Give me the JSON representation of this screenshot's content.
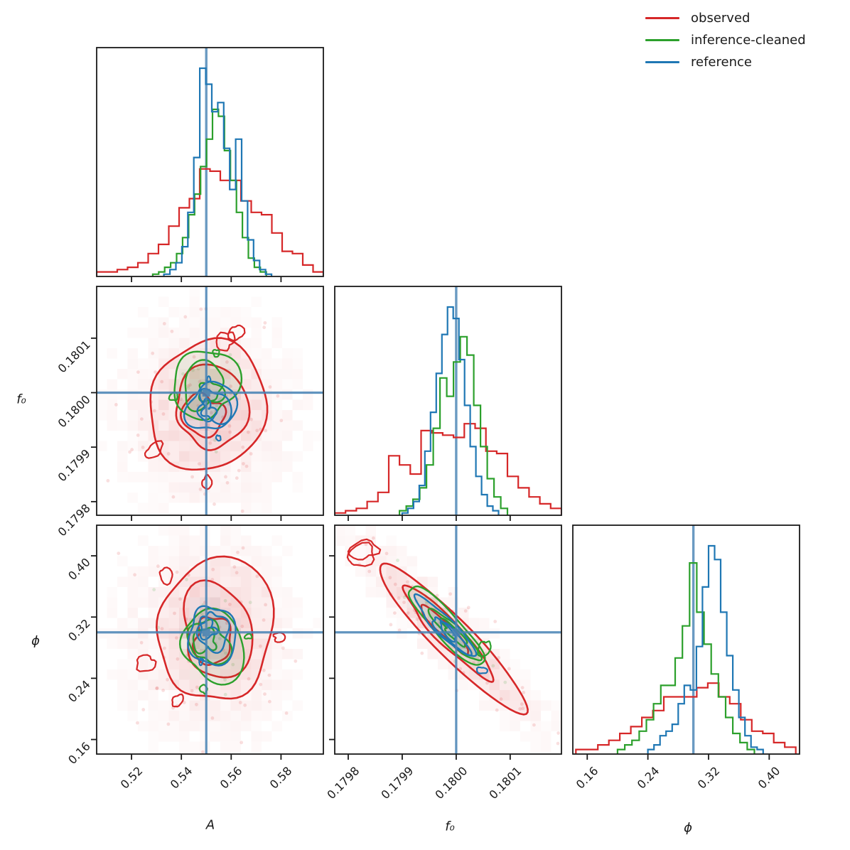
{
  "chart_data": {
    "type": "corner",
    "description": "Corner plot of posterior samples for parameters A, f0, phi comparing three sample sets",
    "legend_position": "upper right",
    "truth_color": "#4682b4",
    "series": [
      {
        "name": "observed",
        "color": "#d62728"
      },
      {
        "name": "inference-cleaned",
        "color": "#2ca02c"
      },
      {
        "name": "reference",
        "color": "#1f77b4"
      }
    ],
    "parameters": [
      {
        "key": "A",
        "label": "A",
        "range": [
          0.506,
          0.597
        ],
        "ticks": [
          0.52,
          0.54,
          0.56,
          0.58
        ],
        "tick_labels": [
          "0.52",
          "0.54",
          "0.56",
          "0.58"
        ],
        "truth": 0.55
      },
      {
        "key": "f0",
        "label": "f₀",
        "range": [
          0.179775,
          0.180195
        ],
        "ticks": [
          0.1798,
          0.1799,
          0.18,
          0.1801
        ],
        "tick_labels": [
          "0.1798",
          "0.1799",
          "0.1800",
          "0.1801"
        ],
        "truth": 0.18
      },
      {
        "key": "phi",
        "label": "ϕ",
        "range": [
          0.141,
          0.44
        ],
        "ticks": [
          0.16,
          0.24,
          0.32,
          0.4
        ],
        "tick_labels": [
          "0.16",
          "0.24",
          "0.32",
          "0.40"
        ],
        "truth": 0.3
      }
    ],
    "histograms": {
      "A": [
        {
          "start": 0.506,
          "binw": 0.004136,
          "heights": [
            0.02,
            0.02,
            0.03,
            0.04,
            0.06,
            0.1,
            0.14,
            0.22,
            0.3,
            0.34,
            0.47,
            0.46,
            0.42,
            0.42,
            0.33,
            0.28,
            0.27,
            0.19,
            0.11,
            0.1,
            0.05,
            0.02
          ]
        },
        {
          "start": 0.5285,
          "binw": 0.0024,
          "heights": [
            0.01,
            0.02,
            0.04,
            0.06,
            0.1,
            0.17,
            0.27,
            0.36,
            0.48,
            0.6,
            0.73,
            0.7,
            0.55,
            0.42,
            0.28,
            0.17,
            0.08,
            0.04,
            0.02
          ]
        },
        {
          "start": 0.533,
          "binw": 0.0024,
          "heights": [
            0.01,
            0.03,
            0.06,
            0.13,
            0.28,
            0.52,
            0.91,
            0.84,
            0.72,
            0.76,
            0.56,
            0.38,
            0.6,
            0.33,
            0.16,
            0.07,
            0.03,
            0.01
          ]
        }
      ],
      "f0": [
        {
          "start": 0.179775,
          "binw": 2e-05,
          "heights": [
            0.01,
            0.02,
            0.03,
            0.06,
            0.1,
            0.26,
            0.22,
            0.18,
            0.37,
            0.36,
            0.35,
            0.34,
            0.4,
            0.38,
            0.28,
            0.27,
            0.17,
            0.12,
            0.08,
            0.05,
            0.03
          ]
        },
        {
          "start": 0.179895,
          "binw": 1.25e-05,
          "heights": [
            0.02,
            0.04,
            0.07,
            0.12,
            0.22,
            0.38,
            0.6,
            0.52,
            0.67,
            0.78,
            0.7,
            0.48,
            0.3,
            0.16,
            0.08,
            0.03
          ]
        },
        {
          "start": 0.1799,
          "binw": 1.05e-05,
          "heights": [
            0.01,
            0.03,
            0.06,
            0.13,
            0.28,
            0.45,
            0.62,
            0.79,
            0.91,
            0.86,
            0.68,
            0.48,
            0.3,
            0.17,
            0.09,
            0.04,
            0.02
          ]
        }
      ],
      "phi": [
        {
          "start": 0.145,
          "binw": 0.0145,
          "heights": [
            0.02,
            0.02,
            0.04,
            0.06,
            0.09,
            0.12,
            0.16,
            0.19,
            0.25,
            0.25,
            0.25,
            0.29,
            0.31,
            0.25,
            0.22,
            0.15,
            0.1,
            0.09,
            0.05,
            0.03
          ]
        },
        {
          "start": 0.2,
          "binw": 0.0095,
          "heights": [
            0.02,
            0.04,
            0.06,
            0.1,
            0.15,
            0.22,
            0.3,
            0.3,
            0.42,
            0.56,
            0.835,
            0.62,
            0.48,
            0.35,
            0.25,
            0.16,
            0.09,
            0.05,
            0.02
          ]
        },
        {
          "start": 0.24,
          "binw": 0.008,
          "heights": [
            0.02,
            0.04,
            0.08,
            0.1,
            0.13,
            0.22,
            0.3,
            0.28,
            0.47,
            0.73,
            0.91,
            0.85,
            0.62,
            0.43,
            0.28,
            0.16,
            0.08,
            0.03,
            0.02
          ]
        }
      ]
    },
    "contours": {
      "A_f0": [
        {
          "cx": 0.49,
          "cy": 0.55,
          "rx": 0.26,
          "ry": 0.28,
          "angle": 0,
          "jag": 0.14,
          "islands": 4
        },
        {
          "cx": 0.49,
          "cy": 0.45,
          "rx": 0.14,
          "ry": 0.15,
          "angle": 0,
          "jag": 0.22,
          "islands": 2
        },
        {
          "cx": 0.5,
          "cy": 0.53,
          "rx": 0.1,
          "ry": 0.11,
          "angle": 0,
          "jag": 0.28,
          "islands": 2
        }
      ],
      "A_phi": [
        {
          "cx": 0.5,
          "cy": 0.5,
          "rx": 0.26,
          "ry": 0.3,
          "angle": 0,
          "jag": 0.16,
          "islands": 4
        },
        {
          "cx": 0.49,
          "cy": 0.52,
          "rx": 0.13,
          "ry": 0.16,
          "angle": 0,
          "jag": 0.24,
          "islands": 2
        },
        {
          "cx": 0.5,
          "cy": 0.45,
          "rx": 0.1,
          "ry": 0.13,
          "angle": 0,
          "jag": 0.28,
          "islands": 1
        }
      ],
      "f0_phi": [
        {
          "cx": 0.5,
          "cy": 0.47,
          "rx": 0.44,
          "ry": 0.085,
          "angle": 45,
          "jag": 0.1,
          "islands": 2
        },
        {
          "cx": 0.51,
          "cy": 0.46,
          "rx": 0.24,
          "ry": 0.055,
          "angle": 45,
          "jag": 0.16,
          "islands": 1
        },
        {
          "cx": 0.5,
          "cy": 0.46,
          "rx": 0.17,
          "ry": 0.042,
          "angle": 45,
          "jag": 0.2,
          "islands": 1
        }
      ]
    },
    "contour_levels": [
      1.0,
      0.62,
      0.33
    ],
    "texture": {
      "seed": 7,
      "heat_alpha": [
        0.13,
        0.07,
        0.1
      ],
      "heat_scale": [
        1.5,
        1.1,
        1.1
      ],
      "scatter_counts": [
        70,
        14,
        0
      ]
    }
  }
}
